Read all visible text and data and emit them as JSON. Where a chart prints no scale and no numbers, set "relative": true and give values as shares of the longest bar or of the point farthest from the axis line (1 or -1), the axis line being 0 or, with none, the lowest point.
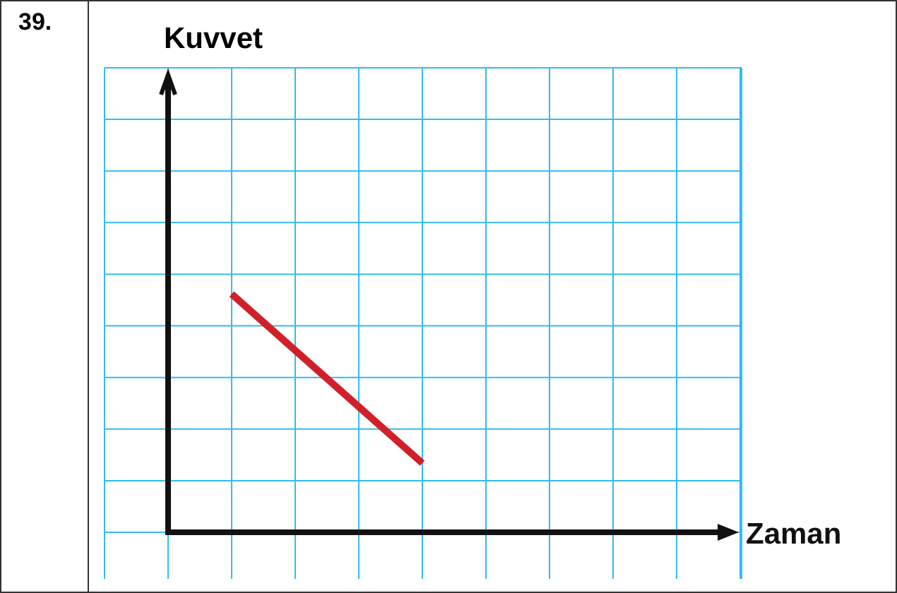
{
  "chart_data": {
    "type": "line",
    "relative": true,
    "xlabel": "Zaman",
    "annotations": [
      "39.",
      "Kuvvet"
    ],
    "categories": [
      null,
      null,
      null,
      null,
      null,
      null,
      null,
      null,
      null,
      null
    ],
    "series": [
      {
        "color": "#d0202a",
        "values": [
          null,
          1,
          null,
          null,
          0.29,
          null,
          null,
          null,
          null,
          null
        ]
      }
    ],
    "grid": true,
    "marker": "none",
    "legend": false
  }
}
